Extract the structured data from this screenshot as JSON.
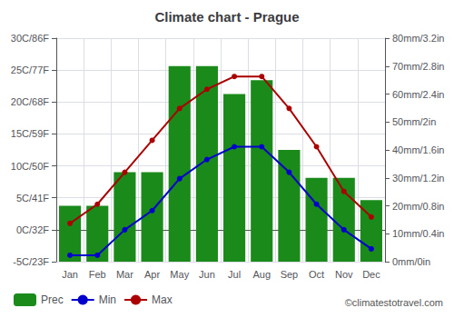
{
  "chart_data": {
    "type": "bar",
    "title": "Climate chart - Prague",
    "categories": [
      "Jan",
      "Feb",
      "Mar",
      "Apr",
      "May",
      "Jun",
      "Jul",
      "Aug",
      "Sep",
      "Oct",
      "Nov",
      "Dec"
    ],
    "series": [
      {
        "name": "Prec",
        "type": "bar",
        "axis": "y2",
        "color": "#1a8a1a",
        "values": [
          20,
          20,
          32,
          32,
          70,
          70,
          60,
          65,
          40,
          30,
          30,
          22
        ]
      },
      {
        "name": "Min",
        "type": "line",
        "color": "#0000cc",
        "marker": "circle",
        "values": [
          -4,
          -4,
          0,
          3,
          8,
          11,
          13,
          13,
          9,
          4,
          0,
          -3
        ]
      },
      {
        "name": "Max",
        "type": "line",
        "color": "#aa0000",
        "marker": "circle",
        "values": [
          1,
          4,
          9,
          14,
          19,
          22,
          24,
          24,
          19,
          13,
          6,
          2
        ]
      }
    ],
    "ylim": [
      -5,
      30
    ],
    "yticks": [
      {
        "value": -5,
        "label": "-5C/23F"
      },
      {
        "value": 0,
        "label": "0C/32F"
      },
      {
        "value": 5,
        "label": "5C/41F"
      },
      {
        "value": 10,
        "label": "10C/50F"
      },
      {
        "value": 15,
        "label": "15C/59F"
      },
      {
        "value": 20,
        "label": "20C/68F"
      },
      {
        "value": 25,
        "label": "25C/77F"
      },
      {
        "value": 30,
        "label": "30C/86F"
      }
    ],
    "y2lim": [
      0,
      80
    ],
    "y2ticks": [
      {
        "value": 0,
        "label": "0mm/0in"
      },
      {
        "value": 10,
        "label": "10mm/0.4in"
      },
      {
        "value": 20,
        "label": "20mm/0.8in"
      },
      {
        "value": 30,
        "label": "30mm/1.2in"
      },
      {
        "value": 40,
        "label": "40mm/1.6in"
      },
      {
        "value": 50,
        "label": "50mm/2in"
      },
      {
        "value": 60,
        "label": "60mm/2.4in"
      },
      {
        "value": 70,
        "label": "70mm/2.8in"
      },
      {
        "value": 80,
        "label": "80mm/3.2in"
      }
    ],
    "grid": true,
    "legend": "lower left",
    "annotations": [
      "©climatestotravel.com"
    ]
  }
}
